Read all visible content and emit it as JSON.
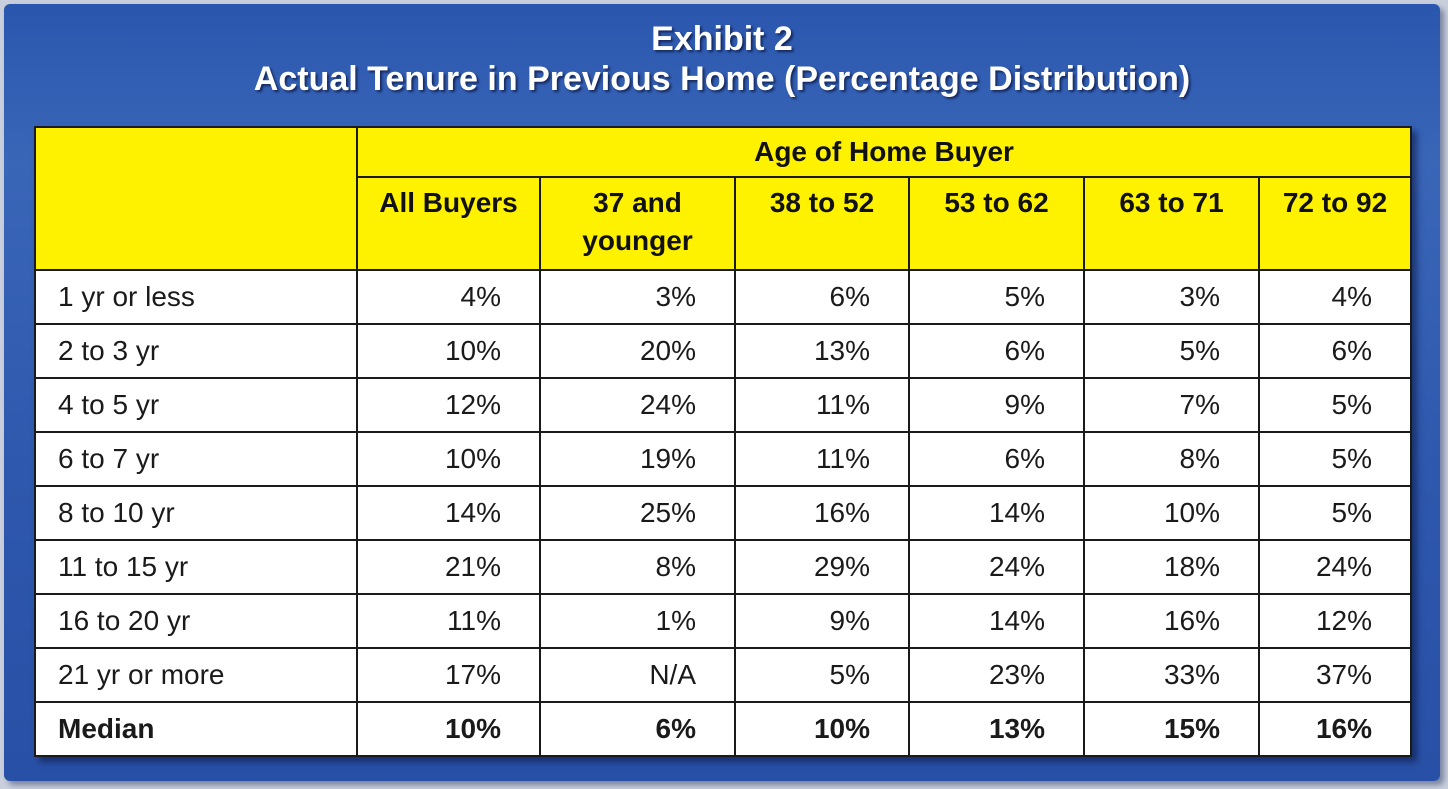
{
  "title_line1": "Exhibit 2",
  "title_line2": "Actual Tenure in Previous Home (Percentage Distribution)",
  "group_header": "Age of Home Buyer",
  "columns": [
    [
      "All Buyers"
    ],
    [
      "37 and",
      "younger"
    ],
    [
      "38 to 52"
    ],
    [
      "53 to 62"
    ],
    [
      "63 to 71"
    ],
    [
      "72 to 92"
    ]
  ],
  "rows": [
    {
      "label": "1 yr or less",
      "values": [
        "4%",
        "3%",
        "6%",
        "5%",
        "3%",
        "4%"
      ]
    },
    {
      "label": "2 to 3 yr",
      "values": [
        "10%",
        "20%",
        "13%",
        "6%",
        "5%",
        "6%"
      ]
    },
    {
      "label": "4 to 5 yr",
      "values": [
        "12%",
        "24%",
        "11%",
        "9%",
        "7%",
        "5%"
      ]
    },
    {
      "label": "6 to 7 yr",
      "values": [
        "10%",
        "19%",
        "11%",
        "6%",
        "8%",
        "5%"
      ]
    },
    {
      "label": "8 to 10 yr",
      "values": [
        "14%",
        "25%",
        "16%",
        "14%",
        "10%",
        "5%"
      ]
    },
    {
      "label": "11 to 15 yr",
      "values": [
        "21%",
        "8%",
        "29%",
        "24%",
        "18%",
        "24%"
      ]
    },
    {
      "label": "16 to 20 yr",
      "values": [
        "11%",
        "1%",
        "9%",
        "14%",
        "16%",
        "12%"
      ]
    },
    {
      "label": "21 yr or more",
      "values": [
        "17%",
        "N/A",
        "5%",
        "23%",
        "33%",
        "37%"
      ]
    }
  ],
  "median": {
    "label": "Median",
    "values": [
      "10%",
      "6%",
      "10%",
      "13%",
      "15%",
      "16%"
    ]
  },
  "colors": {
    "header_fill": "#fff200",
    "panel_blue": "#2a56ae",
    "title_text": "#ffffff"
  }
}
